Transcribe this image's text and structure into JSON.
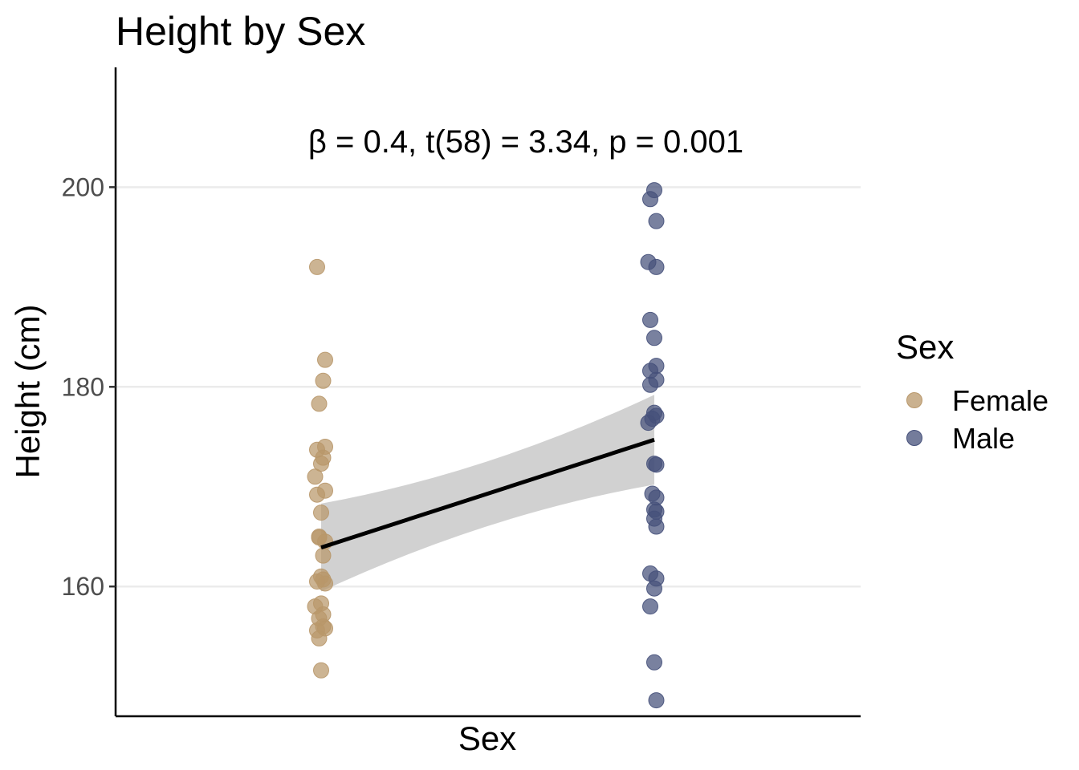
{
  "chart_data": {
    "type": "scatter",
    "title": "Height by Sex",
    "xlabel": "Sex",
    "ylabel": "Height (cm)",
    "ylim": [
      147,
      212
    ],
    "y_ticks": [
      160,
      180,
      200
    ],
    "grid": "horizontal major",
    "annotation": "β = 0.4, t(58) = 3.34, p = 0.001",
    "legend": {
      "title": "Sex",
      "position": "right",
      "entries": [
        {
          "label": "Female",
          "color": "#b8976a"
        },
        {
          "label": "Male",
          "color": "#45507a"
        }
      ]
    },
    "series": [
      {
        "name": "Female",
        "color": "#b8976a",
        "x": [
          -0.02,
          0.02,
          0.01,
          -0.01,
          -0.02,
          0.02,
          0.01,
          0.0,
          -0.03,
          0.02,
          -0.02,
          0.0,
          -0.01,
          0.02,
          0.01,
          0.0,
          0.01,
          0.02,
          -0.02,
          0.0,
          0.01,
          -0.03,
          -0.01,
          0.01,
          -0.02,
          0.02,
          -0.01,
          0.0,
          -0.01
        ],
        "y": [
          192.0,
          182.7,
          180.6,
          178.3,
          173.7,
          174.0,
          172.9,
          172.3,
          171.0,
          169.6,
          169.2,
          167.4,
          165.0,
          164.5,
          163.1,
          161.0,
          160.7,
          160.3,
          160.5,
          158.3,
          157.2,
          158.0,
          156.8,
          156.0,
          155.6,
          155.8,
          154.8,
          151.6,
          164.9
        ]
      },
      {
        "name": "Male",
        "color": "#45507a",
        "x": [
          0.0,
          -0.02,
          0.01,
          -0.03,
          0.01,
          -0.02,
          0.0,
          0.01,
          -0.02,
          0.01,
          -0.02,
          0.0,
          0.01,
          -0.03,
          -0.01,
          0.01,
          0.0,
          -0.01,
          0.01,
          0.0,
          0.01,
          0.0,
          0.01,
          -0.02,
          0.01,
          0.0,
          -0.02,
          0.0,
          0.01
        ],
        "y": [
          199.7,
          198.8,
          196.6,
          192.5,
          192.0,
          186.7,
          184.9,
          182.1,
          181.6,
          180.7,
          180.2,
          177.4,
          177.1,
          176.4,
          176.8,
          172.2,
          172.3,
          169.3,
          168.9,
          167.7,
          167.5,
          166.8,
          166.0,
          161.3,
          160.8,
          159.8,
          158.0,
          152.4,
          148.6
        ]
      }
    ],
    "regression": {
      "x": [
        0,
        1
      ],
      "y": [
        163.9,
        174.7
      ],
      "ci_lower": [
        159.5,
        170.2
      ],
      "ci_upper": [
        168.3,
        179.2
      ],
      "line_color": "#000000",
      "band_color": "#bebebe"
    }
  }
}
